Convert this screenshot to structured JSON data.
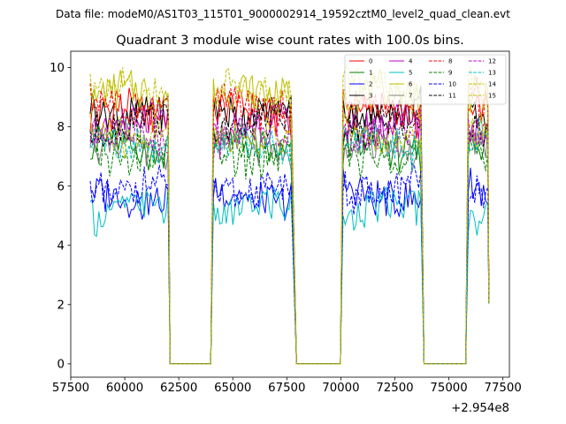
{
  "suptitle": "Data file: modeM0/AS1T03_115T01_9000002914_19592cztM0_level2_quad_clean.evt",
  "chart_data": {
    "type": "line",
    "title": "Quadrant 3 module wise count rates with 100.0s bins.",
    "xlabel": "",
    "ylabel": "",
    "offset_text": "+2.954e8",
    "xlim": [
      57500,
      77800
    ],
    "ylim": [
      -0.45,
      10.55
    ],
    "xticks": [
      57500,
      60000,
      62500,
      65000,
      67500,
      70000,
      72500,
      75000,
      77500
    ],
    "xtick_labels": [
      "57500",
      "60000",
      "62500",
      "65000",
      "67500",
      "70000",
      "72500",
      "75000",
      "77500"
    ],
    "yticks": [
      0,
      2,
      4,
      6,
      8,
      10
    ],
    "ytick_labels": [
      "0",
      "2",
      "4",
      "6",
      "8",
      "10"
    ],
    "legend_position": "upper right",
    "segments": [
      {
        "start": 58400,
        "end": 62000,
        "drop_end": 62100
      },
      {
        "start": 64100,
        "end": 67700,
        "drop_end": 67950
      },
      {
        "start": 70100,
        "end": 73700,
        "drop_end": 73850
      },
      {
        "start": 75900,
        "end": 76850,
        "drop_end": 76850
      }
    ],
    "gap_level": 0,
    "series": [
      {
        "name": "0",
        "color": "#ff0000",
        "dash": "solid",
        "mean": 8.4
      },
      {
        "name": "1",
        "color": "#008000",
        "dash": "solid",
        "mean": 7.3
      },
      {
        "name": "2",
        "color": "#0000ff",
        "dash": "solid",
        "mean": 5.7
      },
      {
        "name": "3",
        "color": "#000000",
        "dash": "solid",
        "mean": 8.6
      },
      {
        "name": "4",
        "color": "#bf00bf",
        "dash": "solid",
        "mean": 8.0
      },
      {
        "name": "5",
        "color": "#00bfbf",
        "dash": "solid",
        "mean": 5.2
      },
      {
        "name": "6",
        "color": "#bfbf00",
        "dash": "solid",
        "mean": 9.0
      },
      {
        "name": "7",
        "color": "#808080",
        "dash": "solid",
        "mean": 7.3
      },
      {
        "name": "8",
        "color": "#ff0000",
        "dash": "dashed",
        "mean": 8.7
      },
      {
        "name": "9",
        "color": "#008000",
        "dash": "dashed",
        "mean": 7.1
      },
      {
        "name": "10",
        "color": "#0000ff",
        "dash": "dashed",
        "mean": 5.9
      },
      {
        "name": "11",
        "color": "#000000",
        "dash": "dashed",
        "mean": 8.0
      },
      {
        "name": "12",
        "color": "#bf00bf",
        "dash": "dashed",
        "mean": 7.7
      },
      {
        "name": "13",
        "color": "#00bfbf",
        "dash": "dashed",
        "mean": 7.4
      },
      {
        "name": "14",
        "color": "#bfbf00",
        "dash": "dashed",
        "mean": 9.3
      },
      {
        "name": "15",
        "color": "#bfbf00",
        "dash": "dashed",
        "mean": 7.8
      }
    ]
  }
}
